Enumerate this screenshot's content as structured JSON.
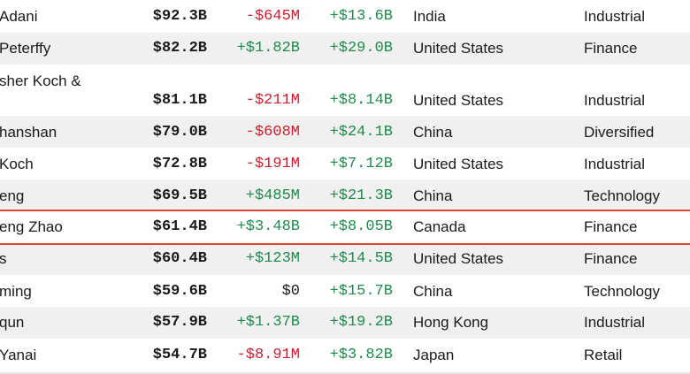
{
  "colors": {
    "negative": "#c8202e",
    "positive": "#1f8a4c",
    "highlight_border": "#e0452d",
    "row_shade": "#f0f0f0"
  },
  "rows": [
    {
      "name": "Adani",
      "name2": "",
      "net_worth": "$92.3B",
      "last_change": "-$645M",
      "ytd_change": "+$13.6B",
      "country": "India",
      "industry": "Industrial"
    },
    {
      "name": "Peterffy",
      "name2": "",
      "net_worth": "$82.2B",
      "last_change": "+$1.82B",
      "ytd_change": "+$29.0B",
      "country": "United States",
      "industry": "Finance"
    },
    {
      "name": "sher Koch &",
      "name2": "",
      "net_worth": "$81.1B",
      "last_change": "-$211M",
      "ytd_change": "+$8.14B",
      "country": "United States",
      "industry": "Industrial"
    },
    {
      "name": "hanshan",
      "name2": "",
      "net_worth": "$79.0B",
      "last_change": "-$608M",
      "ytd_change": "+$24.1B",
      "country": "China",
      "industry": "Diversified"
    },
    {
      "name": "Koch",
      "name2": "",
      "net_worth": "$72.8B",
      "last_change": "-$191M",
      "ytd_change": "+$7.12B",
      "country": "United States",
      "industry": "Industrial"
    },
    {
      "name": "eng",
      "name2": "",
      "net_worth": "$69.5B",
      "last_change": "+$485M",
      "ytd_change": "+$21.3B",
      "country": "China",
      "industry": "Technology"
    },
    {
      "name": "eng Zhao",
      "name2": "",
      "net_worth": "$61.4B",
      "last_change": "+$3.48B",
      "ytd_change": "+$8.05B",
      "country": "Canada",
      "industry": "Finance"
    },
    {
      "name": "s",
      "name2": "",
      "net_worth": "$60.4B",
      "last_change": "+$123M",
      "ytd_change": "+$14.5B",
      "country": "United States",
      "industry": "Finance"
    },
    {
      "name": "ming",
      "name2": "",
      "net_worth": "$59.6B",
      "last_change": "$0",
      "ytd_change": "+$15.7B",
      "country": "China",
      "industry": "Technology"
    },
    {
      "name": "qun",
      "name2": "",
      "net_worth": "$57.9B",
      "last_change": "+$1.37B",
      "ytd_change": "+$19.2B",
      "country": "Hong Kong",
      "industry": "Industrial"
    },
    {
      "name": "Yanai",
      "name2": "",
      "net_worth": "$54.7B",
      "last_change": "-$8.91M",
      "ytd_change": "+$3.82B",
      "country": "Japan",
      "industry": "Retail"
    }
  ]
}
